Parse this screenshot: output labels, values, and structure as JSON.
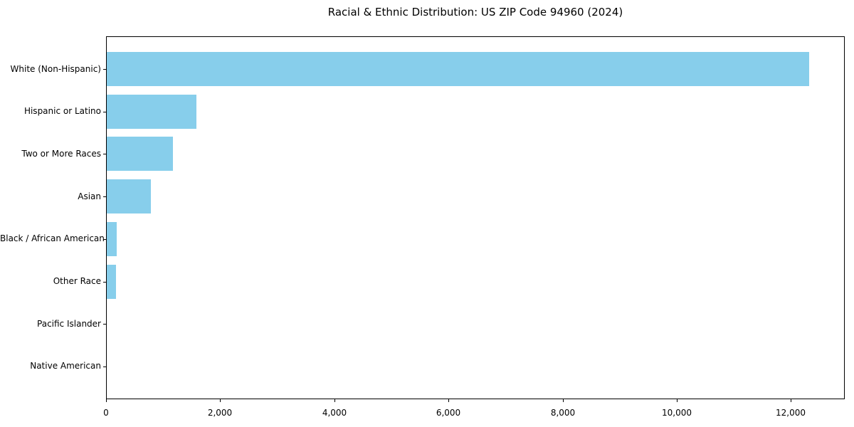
{
  "chart_data": {
    "type": "bar",
    "orientation": "horizontal",
    "title": "Racial & Ethnic Distribution: US ZIP Code 94960 (2024)",
    "xlabel": "",
    "ylabel": "",
    "categories": [
      "White (Non-Hispanic)",
      "Hispanic or Latino",
      "Two or More Races",
      "Asian",
      "Black / African American",
      "Other Race",
      "Pacific Islander",
      "Native American"
    ],
    "values": [
      12315,
      1575,
      1165,
      780,
      185,
      170,
      10,
      5
    ],
    "xlim": [
      0,
      12930
    ],
    "x_ticks": [
      0,
      2000,
      4000,
      6000,
      8000,
      10000,
      12000
    ],
    "x_tick_labels": [
      "0",
      "2,000",
      "4,000",
      "6,000",
      "8,000",
      "10,000",
      "12,000"
    ],
    "bar_color": "#87ceeb",
    "grid": false,
    "legend": "none"
  }
}
